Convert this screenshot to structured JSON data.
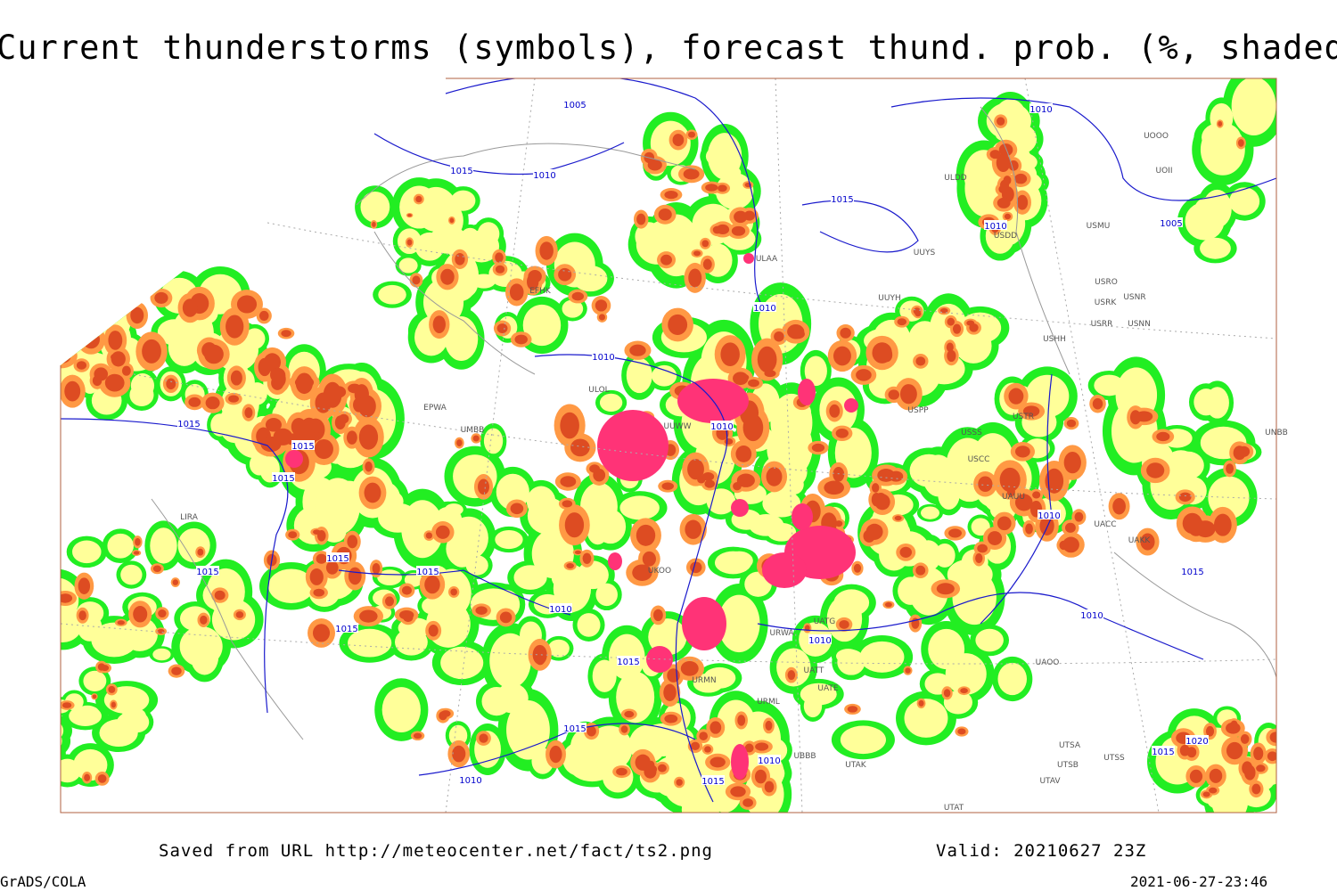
{
  "title": "Current thunderstorms (symbols), forecast thund. prob. (%, shaded)",
  "footer": {
    "source": "Saved from URL http://meteocenter.net/fact/ts2.png",
    "valid": "Valid: 20210627 23Z",
    "software": "GrADS/COLA",
    "timestamp": "2021-06-27-23:46"
  },
  "isobar_labels": [
    "1005",
    "1015",
    "1010",
    "1010",
    "1015",
    "1010",
    "1005",
    "1010",
    "1010",
    "1015",
    "1010",
    "1015",
    "1015",
    "1015",
    "1015",
    "1015",
    "1010",
    "1015",
    "1010",
    "1015",
    "1010",
    "1010",
    "1015",
    "1015",
    "1010",
    "1010",
    "1015",
    "1015",
    "1020"
  ],
  "station_labels": [
    "ULAA",
    "UUYH",
    "UUYS",
    "ULDD",
    "USDD",
    "USMU",
    "UOOO",
    "UOII",
    "USRO",
    "USRK",
    "USNR",
    "USRR",
    "USNN",
    "USHH",
    "USPP",
    "USTR",
    "USSS",
    "USCC",
    "UAUU",
    "UACC",
    "UAKK",
    "UNBB",
    "EPWA",
    "UMBB",
    "EFHK",
    "UATG",
    "URWA",
    "UATT",
    "UATE",
    "UAOO",
    "UBBB",
    "UTAK",
    "UTSA",
    "UTSB",
    "UTSS",
    "UTAV",
    "UTAT",
    "URML",
    "URMN",
    "UUWW",
    "UKOO",
    "ULOL",
    "LIRA"
  ]
}
